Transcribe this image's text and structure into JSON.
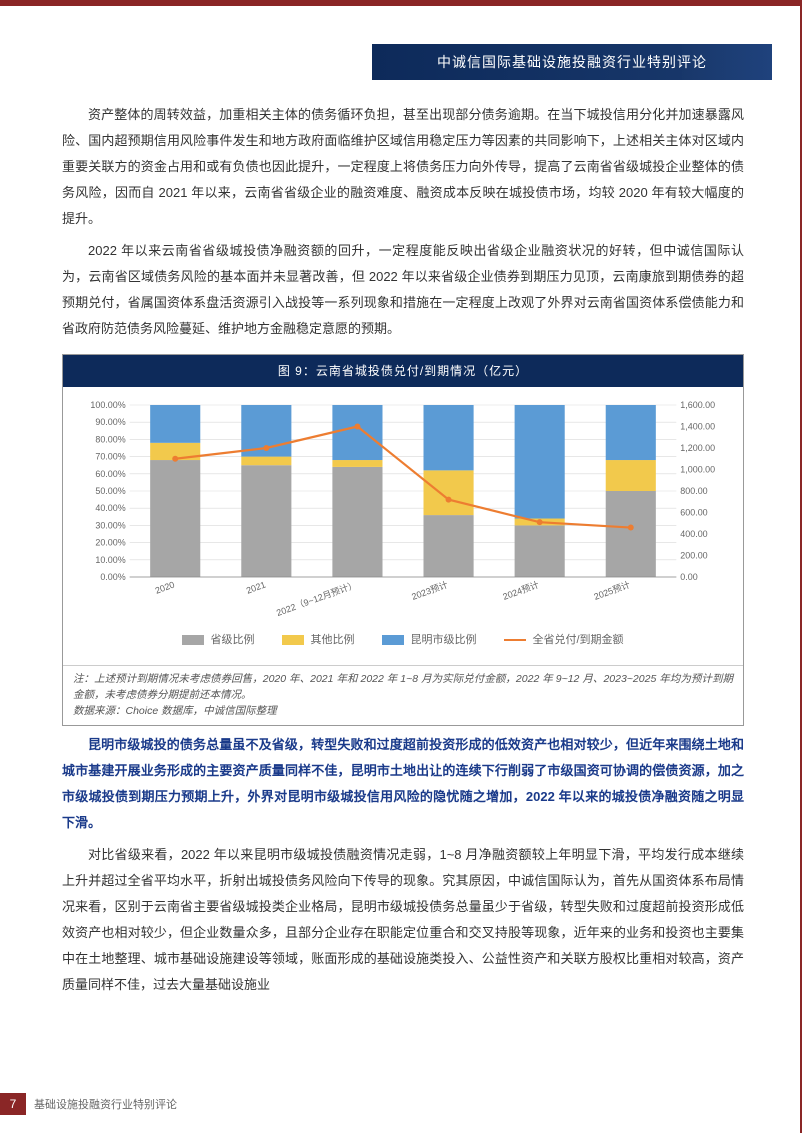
{
  "header": {
    "title": "中诚信国际基础设施投融资行业特别评论"
  },
  "paragraphs": {
    "p1": "资产整体的周转效益，加重相关主体的债务循环负担，甚至出现部分债务逾期。在当下城投信用分化并加速暴露风险、国内超预期信用风险事件发生和地方政府面临维护区域信用稳定压力等因素的共同影响下，上述相关主体对区域内重要关联方的资金占用和或有负债也因此提升，一定程度上将债务压力向外传导，提高了云南省省级城投企业整体的债务风险，因而自 2021 年以来，云南省省级企业的融资难度、融资成本反映在城投债市场，均较 2020 年有较大幅度的提升。",
    "p2": "2022 年以来云南省省级城投债净融资额的回升，一定程度能反映出省级企业融资状况的好转，但中诚信国际认为，云南省区域债务风险的基本面并未显著改善，但 2022 年以来省级企业债券到期压力见顶，云南康旅到期债券的超预期兑付，省属国资体系盘活资源引入战投等一系列现象和措施在一定程度上改观了外界对云南省国资体系偿债能力和省政府防范债务风险蔓延、维护地方金融稳定意愿的预期。",
    "p3_blue": "昆明市级城投的债务总量虽不及省级，转型失败和过度超前投资形成的低效资产也相对较少，但近年来围绕土地和城市基建开展业务形成的主要资产质量同样不佳，昆明市土地出让的连续下行削弱了市级国资可协调的偿债资源，加之市级城投债到期压力预期上升，外界对昆明市级城投信用风险的隐忧随之增加，2022 年以来的城投债净融资随之明显下滑。",
    "p4": "对比省级来看，2022 年以来昆明市级城投债融资情况走弱，1~8 月净融资额较上年明显下滑，平均发行成本继续上升并超过全省平均水平，折射出城投债务风险向下传导的现象。究其原因，中诚信国际认为，首先从国资体系布局情况来看，区别于云南省主要省级城投类企业格局，昆明市级城投债务总量虽少于省级，转型失败和过度超前投资形成低效资产也相对较少，但企业数量众多，且部分企业存在职能定位重合和交叉持股等现象，近年来的业务和投资也主要集中在土地整理、城市基础设施建设等领域，账面形成的基础设施类投入、公益性资产和关联方股权比重相对较高，资产质量同样不佳，过去大量基础设施业"
  },
  "chart": {
    "title": "图 9：云南省城投债兑付/到期情况（亿元）",
    "type": "stacked-bar-with-line",
    "categories": [
      "2020",
      "2021",
      "2022（9~12月预计）",
      "2023预计",
      "2024预计",
      "2025预计"
    ],
    "series": {
      "province_pct": [
        68,
        65,
        64,
        36,
        30,
        50
      ],
      "other_pct": [
        10,
        5,
        4,
        26,
        4,
        18
      ],
      "kunming_pct": [
        22,
        30,
        32,
        38,
        66,
        32
      ],
      "line_amount": [
        1100,
        1200,
        1400,
        720,
        510,
        460
      ]
    },
    "left_axis": {
      "min": 0,
      "max": 100,
      "step": 10,
      "suffix": "%",
      "format": "0.00"
    },
    "right_axis": {
      "min": 0,
      "max": 1600,
      "step": 200,
      "format": "0.00"
    },
    "colors": {
      "province": "#a6a6a6",
      "other": "#f2c94c",
      "kunming": "#5b9bd5",
      "line": "#ed7d31",
      "grid": "#d9d9d9",
      "axis": "#888888",
      "bg": "#ffffff"
    },
    "legend": {
      "province": "省级比例",
      "other": "其他比例",
      "kunming": "昆明市级比例",
      "line": "全省兑付/到期金额"
    },
    "note_line1": "注：上述预计到期情况未考虑债券回售，2020 年、2021 年和 2022 年 1~8 月为实际兑付金额，2022 年 9~12 月、2023~2025 年均为预计到期金额，未考虑债券分期提前还本情况。",
    "note_line2": "数据来源：Choice 数据库，中诚信国际整理"
  },
  "footer": {
    "page": "7",
    "text": "基础设施投融资行业特别评论"
  }
}
